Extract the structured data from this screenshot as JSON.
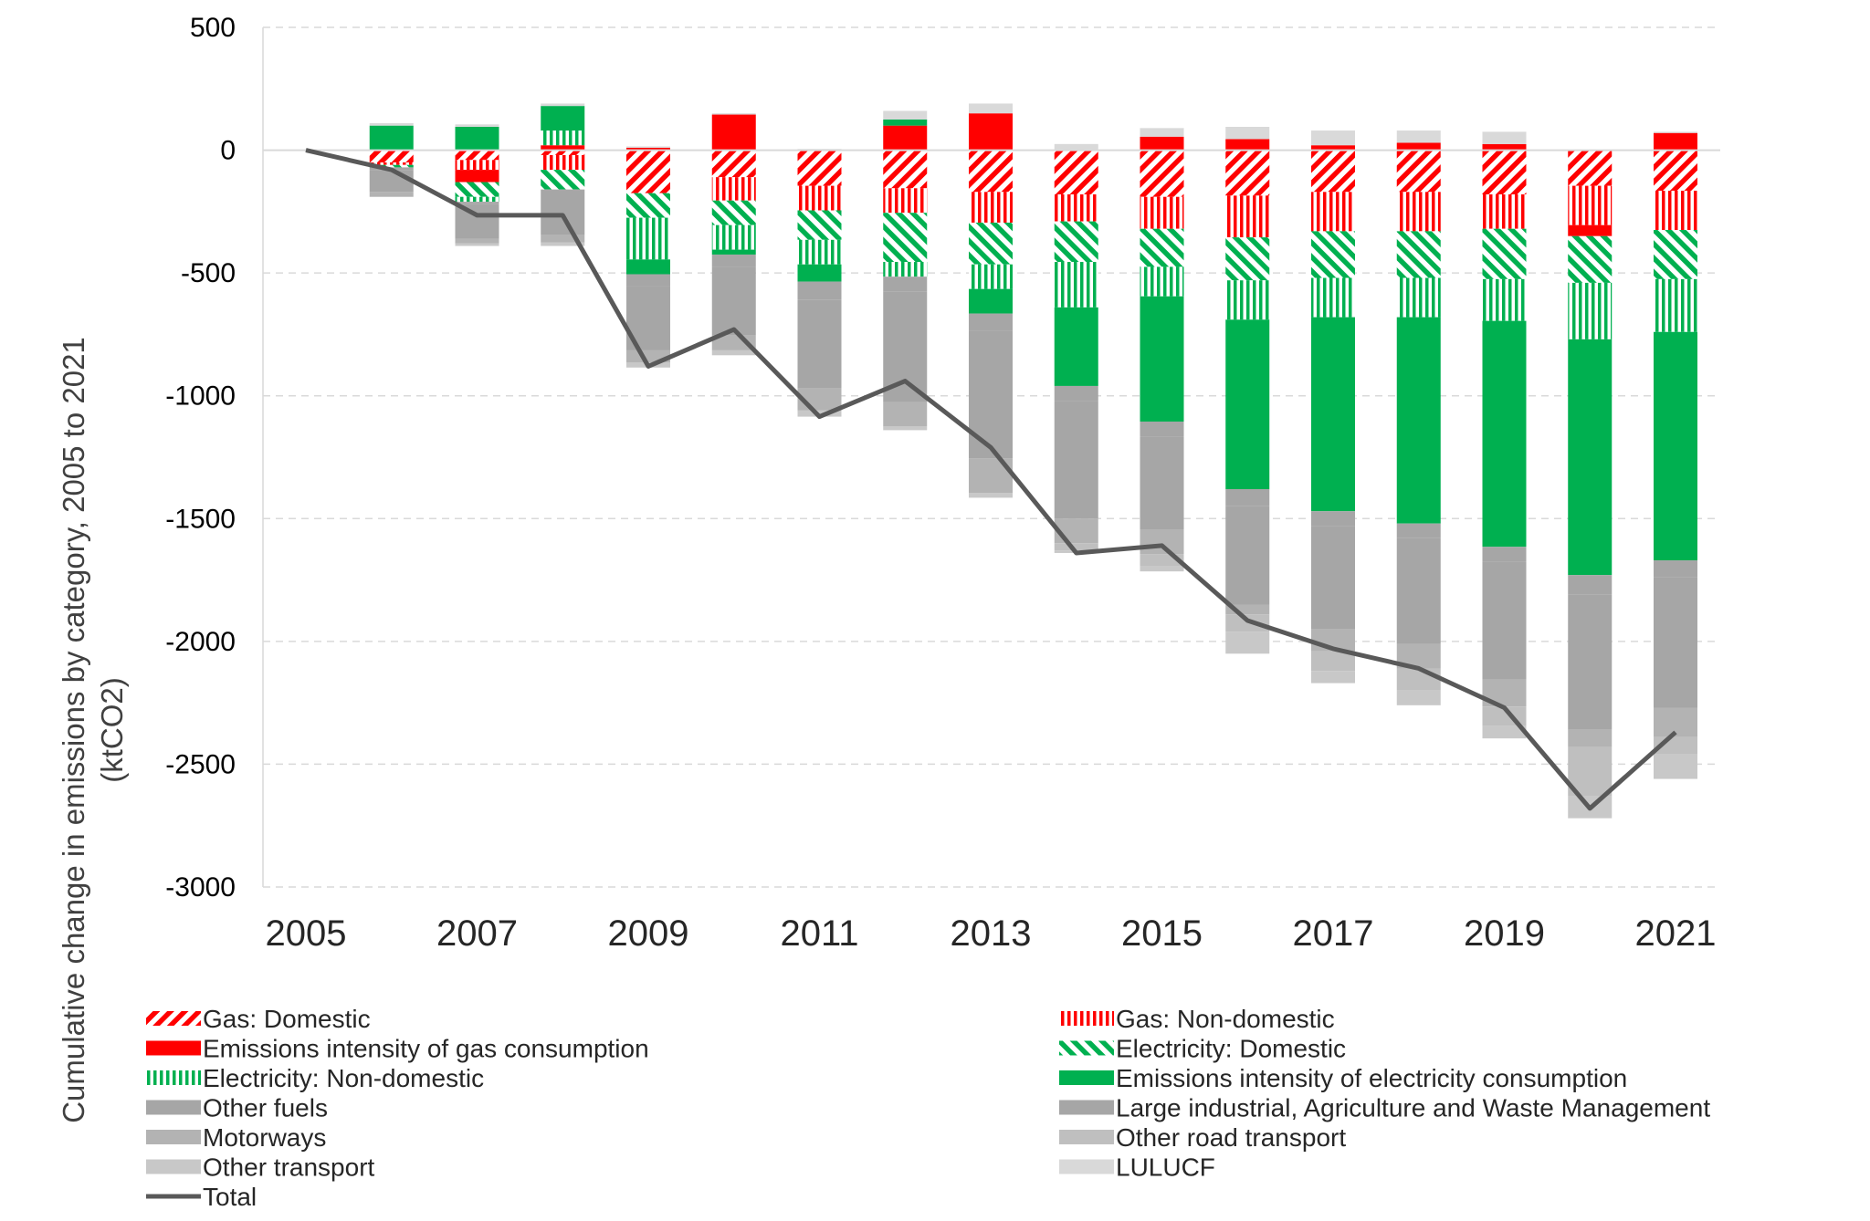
{
  "chart_data": {
    "type": "bar",
    "subtype": "stacked bar with line overlay",
    "title": "",
    "ylabel_lines": [
      "Cumulative change in emissions by category, 2005 to 2021",
      "(ktCO2)"
    ],
    "xlabel": "",
    "ylim": [
      -3000,
      500
    ],
    "y_ticks": [
      "500",
      "0",
      "-500",
      "-1000",
      "-1500",
      "-2000",
      "-2500",
      "-3000"
    ],
    "x_tick_labels": [
      "2005",
      "2007",
      "2009",
      "2011",
      "2013",
      "2015",
      "2017",
      "2019",
      "2021"
    ],
    "grid": "horizontal dashed",
    "legend_position": "bottom",
    "years": [
      2005,
      2006,
      2007,
      2008,
      2009,
      2010,
      2011,
      2012,
      2013,
      2014,
      2015,
      2016,
      2017,
      2018,
      2019,
      2020,
      2021
    ],
    "series": [
      {
        "name": "Gas: Domestic",
        "color": "#ff0000",
        "pattern": "diagonal-hatch",
        "values": [
          0,
          -50,
          -40,
          -20,
          -175,
          -110,
          -145,
          -155,
          -170,
          -180,
          -190,
          -185,
          -170,
          -170,
          -180,
          -145,
          -165
        ]
      },
      {
        "name": "Gas: Non-domestic",
        "color": "#ff0000",
        "pattern": "vertical-stripes",
        "values": [
          0,
          -10,
          -40,
          -60,
          0,
          -95,
          -100,
          -100,
          -125,
          -110,
          -130,
          -170,
          -160,
          -160,
          -140,
          -160,
          -160
        ]
      },
      {
        "name": "Emissions intensity of gas consumption",
        "color": "#ff0000",
        "pattern": "solid",
        "values": [
          0,
          0,
          -50,
          20,
          10,
          145,
          0,
          100,
          150,
          0,
          55,
          45,
          20,
          30,
          25,
          -45,
          70
        ]
      },
      {
        "name": "Electricity: Domestic",
        "color": "#00b050",
        "pattern": "diagonal-hatch",
        "values": [
          0,
          -10,
          -60,
          -80,
          -100,
          -100,
          -120,
          -200,
          -170,
          -165,
          -155,
          -175,
          -190,
          -190,
          -205,
          -190,
          -200
        ]
      },
      {
        "name": "Electricity: Non-domestic",
        "color": "#00b050",
        "pattern": "vertical-stripes",
        "values": [
          0,
          0,
          -20,
          60,
          -170,
          -100,
          -100,
          -60,
          -100,
          -185,
          -120,
          -160,
          -160,
          -160,
          -170,
          -230,
          -215
        ]
      },
      {
        "name": "Emissions intensity of electricity consumption",
        "color": "#00b050",
        "pattern": "solid",
        "values": [
          0,
          100,
          95,
          100,
          -60,
          -20,
          -70,
          25,
          -100,
          -320,
          -510,
          -690,
          -790,
          -840,
          -920,
          -960,
          -930
        ]
      },
      {
        "name": "Other fuels",
        "color": "#a6a6a6",
        "pattern": "solid",
        "values": [
          0,
          -10,
          -10,
          -5,
          -50,
          -50,
          -75,
          -60,
          -70,
          -60,
          -60,
          -70,
          -60,
          -60,
          -60,
          -80,
          -70
        ]
      },
      {
        "name": "Large industrial, Agriculture and Waste Management",
        "color": "#a6a6a6",
        "pattern": "solid",
        "values": [
          0,
          -90,
          -140,
          -180,
          -260,
          -280,
          -360,
          -450,
          -520,
          -480,
          -380,
          -400,
          -420,
          -430,
          -480,
          -550,
          -530
        ]
      },
      {
        "name": "Motorways",
        "color": "#b3b3b3",
        "pattern": "solid",
        "values": [
          0,
          -20,
          -20,
          -30,
          -50,
          -60,
          -90,
          -100,
          -140,
          -100,
          -100,
          -40,
          -90,
          -100,
          -110,
          -70,
          -120
        ]
      },
      {
        "name": "Other road transport",
        "color": "#bfbfbf",
        "pattern": "solid",
        "values": [
          0,
          0,
          0,
          0,
          0,
          0,
          0,
          0,
          0,
          -30,
          -50,
          -70,
          -80,
          -90,
          -80,
          -200,
          -70
        ]
      },
      {
        "name": "Other transport",
        "color": "#c8c8c8",
        "pattern": "solid",
        "values": [
          0,
          0,
          -10,
          -15,
          -20,
          -20,
          -25,
          -15,
          -20,
          -10,
          -20,
          -90,
          -50,
          -60,
          -50,
          -90,
          -100
        ]
      },
      {
        "name": "LULUCF",
        "color": "#d9d9d9",
        "pattern": "solid",
        "values": [
          0,
          10,
          10,
          10,
          5,
          5,
          5,
          35,
          40,
          25,
          35,
          50,
          60,
          50,
          50,
          0,
          5
        ]
      },
      {
        "name": "Total",
        "color": "#595959",
        "pattern": "line",
        "values": [
          0,
          -80,
          -265,
          -265,
          -880,
          -730,
          -1085,
          -940,
          -1210,
          -1640,
          -1610,
          -1915,
          -2030,
          -2110,
          -2270,
          -2680,
          -2370
        ]
      }
    ]
  }
}
